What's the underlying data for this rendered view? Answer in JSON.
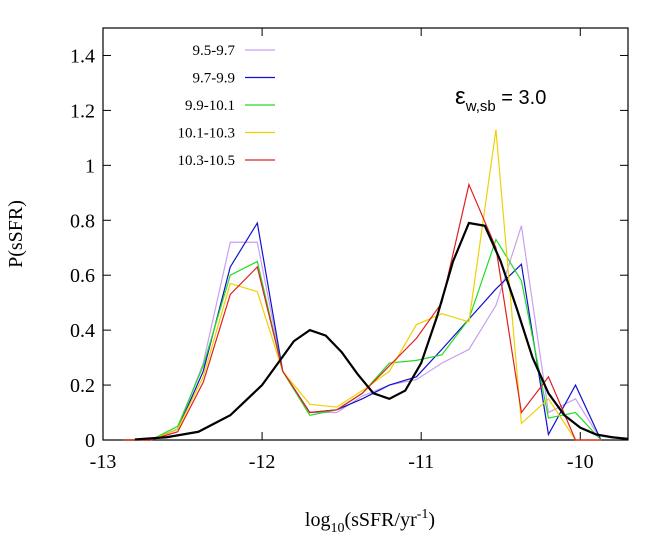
{
  "chart_data": {
    "type": "line",
    "x_label_parts": [
      "log",
      "10",
      "(sSFR/yr",
      "-1",
      ")"
    ],
    "y_label": "P(sSFR)",
    "annotation_parts": [
      "ε",
      "w,sb",
      " = 3.0"
    ],
    "legend_position": "top-left",
    "xlim": [
      -13,
      -9.7
    ],
    "xticks": [
      -13,
      -12,
      -11,
      -10
    ],
    "ylim": [
      0,
      1.5
    ],
    "yticks": [
      0,
      0.2,
      0.4,
      0.6,
      0.8,
      1,
      1.2,
      1.4
    ],
    "x": [
      -12.87,
      -12.7,
      -12.53,
      -12.37,
      -12.2,
      -12.03,
      -11.87,
      -11.7,
      -11.53,
      -11.37,
      -11.2,
      -11.03,
      -10.87,
      -10.7,
      -10.53,
      -10.37,
      -10.2,
      -10.03,
      -9.87
    ],
    "series": [
      {
        "name": "9.5-9.7",
        "color": "#c8a0f0",
        "values": [
          0,
          0,
          0.04,
          0.28,
          0.72,
          0.72,
          0.25,
          0.1,
          0.1,
          0.16,
          0.2,
          0.22,
          0.28,
          0.33,
          0.49,
          0.78,
          0.1,
          0.15,
          0
        ]
      },
      {
        "name": "9.7-9.9",
        "color": "#1010d0",
        "values": [
          0,
          0,
          0.04,
          0.25,
          0.63,
          0.79,
          0.25,
          0.1,
          0.11,
          0.15,
          0.2,
          0.23,
          0.33,
          0.44,
          0.55,
          0.64,
          0.02,
          0.2,
          0
        ]
      },
      {
        "name": "9.9-10.1",
        "color": "#22dd22",
        "values": [
          0,
          0,
          0.05,
          0.27,
          0.6,
          0.65,
          0.25,
          0.09,
          0.11,
          0.17,
          0.28,
          0.29,
          0.31,
          0.44,
          0.73,
          0.58,
          0.08,
          0.1,
          0
        ]
      },
      {
        "name": "10.1-10.3",
        "color": "#f0d000",
        "values": [
          0,
          0,
          0.04,
          0.23,
          0.57,
          0.54,
          0.25,
          0.13,
          0.12,
          0.18,
          0.25,
          0.42,
          0.46,
          0.43,
          1.13,
          0.06,
          0.15,
          0,
          0
        ]
      },
      {
        "name": "10.3-10.5",
        "color": "#e02020",
        "values": [
          0,
          0,
          0.03,
          0.21,
          0.53,
          0.63,
          0.25,
          0.1,
          0.11,
          0.17,
          0.27,
          0.37,
          0.5,
          0.93,
          0.7,
          0.1,
          0.23,
          0,
          0
        ]
      }
    ],
    "model": {
      "color": "#000000",
      "x": [
        -12.8,
        -12.6,
        -12.4,
        -12.2,
        -12.0,
        -11.9,
        -11.8,
        -11.7,
        -11.6,
        -11.5,
        -11.4,
        -11.3,
        -11.2,
        -11.1,
        -11.0,
        -10.9,
        -10.8,
        -10.7,
        -10.6,
        -10.5,
        -10.4,
        -10.3,
        -10.2,
        -10.1,
        -10.0,
        -9.9,
        -9.8,
        -9.7
      ],
      "values": [
        0.002,
        0.01,
        0.03,
        0.09,
        0.2,
        0.28,
        0.36,
        0.4,
        0.38,
        0.32,
        0.24,
        0.17,
        0.15,
        0.18,
        0.28,
        0.45,
        0.65,
        0.79,
        0.78,
        0.65,
        0.48,
        0.3,
        0.17,
        0.09,
        0.045,
        0.02,
        0.01,
        0.004
      ]
    }
  }
}
